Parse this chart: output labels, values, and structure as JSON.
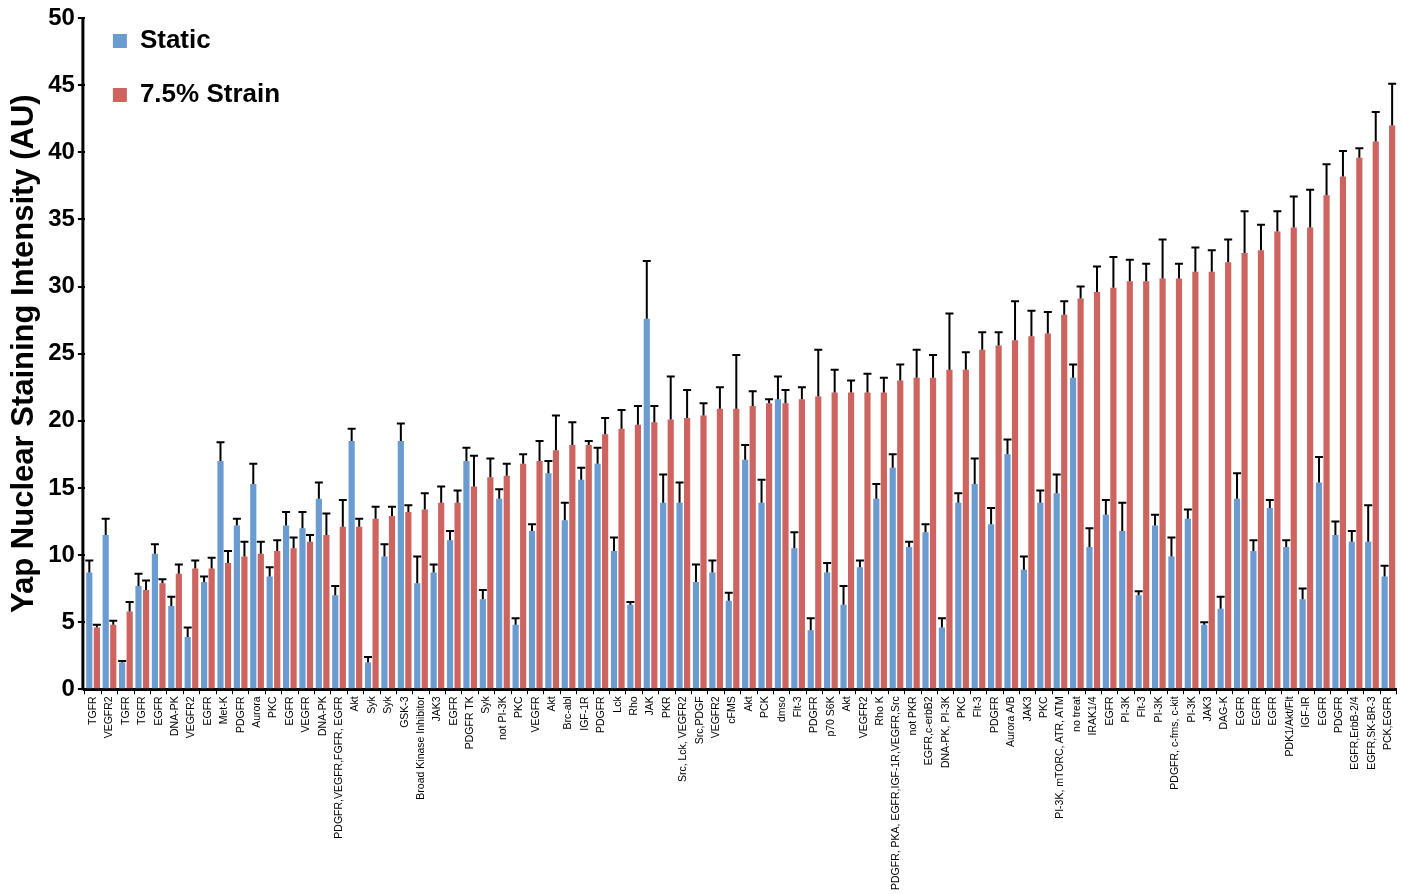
{
  "chart_data": {
    "type": "bar",
    "ylabel": "Yap Nuclear Staining Intensity (AU)",
    "ylim": [
      0,
      50
    ],
    "yticks": [
      0,
      5,
      10,
      15,
      20,
      25,
      30,
      35,
      40,
      45,
      50
    ],
    "legend": "top left",
    "categories": [
      "TGFR",
      "VEGFR2",
      "TGFR",
      "TGFR",
      "EGFR",
      "DNA-PK",
      "VEGFR2",
      "EGFR",
      "Met-K",
      "PDGFR",
      "Aurora",
      "PKC",
      "EGFR",
      "VEGFR",
      "DNA-PK",
      "PDGFR,VEGFR,FGFR, EGFR",
      "Akt",
      "Syk",
      "Syk",
      "GSK-3",
      "Broad Kinase Inhibitor",
      "JAK3",
      "EGFR",
      "PDGFR TK",
      "Syk",
      "not PI-3K",
      "PKC",
      "VEGFR",
      "Akt",
      "Brc-abl",
      "IGF-1R",
      "PDGFR",
      "Lck",
      "Rho",
      "JAK",
      "PKR",
      "Src, Lck, VEGFR2",
      "Src,PDGF",
      "VEGFR2",
      "cFMS",
      "Akt",
      "PCK",
      "dmso",
      "Flt-3",
      "PDGFR",
      "p70 S6K",
      "Akt",
      "VEGFR2",
      "Rho K",
      "PDGFR, PKA, EGFR,IGF-1R,VEGFR,Src",
      "not PKR",
      "EGFR,c-erbB2",
      "DNA-PK, PI-3K",
      "PKC",
      "Flt-3",
      "PDGFR",
      "Aurora A/B",
      "JAK3",
      "PKC",
      "PI-3K, mTORC, ATR, ATM",
      "no treat",
      "IRAK1/4",
      "EGFR",
      "PI-3K",
      "Flt-3",
      "PI-3K",
      "PDGFR, c-fms, c-kit",
      "PI-3K",
      "JAK3",
      "DAG-K",
      "EGFR",
      "EGFR",
      "EGFR",
      "PDK1/Akt/Flt",
      "IGF-IR",
      "EGFR",
      "PDGFR",
      "EGFR,ErbB-2/4",
      "EGFR,SK-BR-3",
      "PCK,EGFR"
    ],
    "series": [
      {
        "name": "Static",
        "color": "#6a9bd1",
        "values": [
          8.7,
          11.5,
          2.0,
          7.7,
          10.1,
          6.2,
          3.9,
          8.0,
          17.0,
          12.2,
          15.3,
          8.4,
          12.2,
          12.0,
          14.2,
          7.0,
          18.5,
          2.0,
          9.9,
          18.5,
          7.9,
          8.7,
          11.1,
          17.0,
          6.7,
          14.2,
          4.8,
          11.8,
          16.1,
          12.6,
          15.6,
          16.8,
          10.3,
          6.3,
          27.6,
          13.9,
          13.9,
          8.0,
          8.7,
          6.6,
          17.1,
          13.9,
          21.6,
          10.5,
          4.4,
          8.7,
          6.3,
          9.1,
          14.2,
          16.5,
          10.6,
          11.7,
          4.6,
          13.9,
          15.3,
          12.3,
          17.5,
          8.9,
          13.9,
          14.6,
          23.2,
          10.6,
          13.0,
          11.8,
          7.0,
          12.2,
          9.9,
          12.7,
          4.8,
          6.0,
          14.2,
          10.3,
          13.5,
          10.6,
          6.7,
          15.4,
          11.5,
          11.0,
          11.0,
          8.4
        ],
        "errors": [
          [
            8.7,
            9.6
          ],
          [
            11.5,
            12.7
          ],
          [
            2.0,
            2.1
          ],
          [
            7.7,
            8.6
          ],
          [
            10.1,
            10.8
          ],
          [
            6.2,
            6.9
          ],
          [
            3.9,
            4.6
          ],
          [
            8.0,
            8.4
          ],
          [
            17.0,
            18.4
          ],
          [
            12.2,
            12.7
          ],
          [
            15.3,
            16.8
          ],
          [
            8.4,
            9.1
          ],
          [
            12.2,
            13.2
          ],
          [
            12.0,
            13.2
          ],
          [
            14.2,
            15.4
          ],
          [
            7.0,
            7.7
          ],
          [
            18.5,
            19.4
          ],
          [
            2.0,
            2.4
          ],
          [
            9.9,
            10.8
          ],
          [
            18.5,
            19.8
          ],
          [
            7.9,
            9.9
          ],
          [
            8.7,
            9.3
          ],
          [
            11.1,
            11.8
          ],
          [
            17.0,
            18.0
          ],
          [
            6.7,
            7.4
          ],
          [
            14.2,
            14.9
          ],
          [
            4.8,
            5.3
          ],
          [
            11.8,
            12.3
          ],
          [
            16.1,
            17.0
          ],
          [
            12.6,
            13.9
          ],
          [
            15.6,
            16.5
          ],
          [
            16.8,
            18.0
          ],
          [
            10.3,
            11.3
          ],
          [
            6.3,
            6.5
          ],
          [
            27.6,
            31.9
          ],
          [
            13.9,
            16.0
          ],
          [
            13.9,
            15.4
          ],
          [
            8.0,
            9.3
          ],
          [
            8.7,
            9.6
          ],
          [
            6.6,
            7.2
          ],
          [
            17.1,
            18.2
          ],
          [
            13.9,
            15.6
          ],
          [
            21.6,
            23.3
          ],
          [
            10.5,
            11.7
          ],
          [
            4.4,
            5.3
          ],
          [
            8.7,
            9.4
          ],
          [
            6.3,
            7.7
          ],
          [
            9.1,
            9.6
          ],
          [
            14.2,
            15.3
          ],
          [
            16.5,
            17.5
          ],
          [
            10.6,
            11.0
          ],
          [
            11.7,
            12.3
          ],
          [
            4.6,
            5.3
          ],
          [
            13.9,
            14.6
          ],
          [
            15.3,
            17.2
          ],
          [
            12.3,
            13.5
          ],
          [
            17.5,
            18.6
          ],
          [
            8.9,
            9.9
          ],
          [
            13.9,
            14.8
          ],
          [
            14.6,
            16.0
          ],
          [
            23.2,
            24.2
          ],
          [
            10.6,
            12.0
          ],
          [
            13.0,
            14.1
          ],
          [
            11.8,
            13.9
          ],
          [
            7.0,
            7.3
          ],
          [
            12.2,
            13.0
          ],
          [
            9.9,
            11.3
          ],
          [
            12.7,
            13.4
          ],
          [
            4.8,
            5.0
          ],
          [
            6.0,
            6.9
          ],
          [
            14.2,
            16.1
          ],
          [
            10.3,
            11.1
          ],
          [
            13.5,
            14.1
          ],
          [
            10.6,
            11.1
          ],
          [
            6.7,
            7.5
          ],
          [
            15.4,
            17.3
          ],
          [
            11.5,
            12.5
          ],
          [
            11.0,
            11.8
          ],
          [
            11.0,
            13.7
          ],
          [
            8.4,
            9.2
          ]
        ]
      },
      {
        "name": "7.5% Strain",
        "color": "#cd6460",
        "values": [
          4.6,
          4.8,
          5.8,
          7.4,
          7.9,
          8.6,
          9.0,
          9.0,
          9.4,
          9.9,
          10.1,
          10.3,
          10.5,
          11.0,
          11.5,
          12.1,
          12.1,
          12.7,
          12.9,
          13.2,
          13.4,
          13.9,
          13.9,
          15.1,
          15.8,
          15.9,
          16.8,
          17.0,
          17.8,
          18.2,
          18.2,
          19.0,
          19.4,
          19.7,
          19.9,
          20.1,
          20.2,
          20.4,
          20.9,
          20.9,
          21.1,
          21.3,
          21.3,
          21.6,
          21.8,
          22.1,
          22.1,
          22.1,
          22.1,
          23.0,
          23.2,
          23.2,
          23.8,
          23.8,
          25.3,
          25.6,
          26.0,
          26.3,
          26.5,
          27.9,
          29.1,
          29.6,
          29.9,
          30.4,
          30.4,
          30.6,
          30.6,
          31.1,
          31.1,
          31.8,
          32.5,
          32.7,
          34.1,
          34.4,
          34.4,
          36.8,
          38.2,
          39.6,
          40.8,
          42.0
        ],
        "errors": [
          [
            4.6,
            4.8
          ],
          [
            4.8,
            5.1
          ],
          [
            5.8,
            6.5
          ],
          [
            7.4,
            8.1
          ],
          [
            7.9,
            8.2
          ],
          [
            8.6,
            9.3
          ],
          [
            9.0,
            9.6
          ],
          [
            9.0,
            9.8
          ],
          [
            9.4,
            10.3
          ],
          [
            9.9,
            11.0
          ],
          [
            10.1,
            11.0
          ],
          [
            10.3,
            11.1
          ],
          [
            10.5,
            11.3
          ],
          [
            11.0,
            11.5
          ],
          [
            11.5,
            13.1
          ],
          [
            12.1,
            14.1
          ],
          [
            12.1,
            12.7
          ],
          [
            12.7,
            13.6
          ],
          [
            12.9,
            13.6
          ],
          [
            13.2,
            13.7
          ],
          [
            13.4,
            14.6
          ],
          [
            13.9,
            15.1
          ],
          [
            13.9,
            14.8
          ],
          [
            15.1,
            17.4
          ],
          [
            15.8,
            17.2
          ],
          [
            15.9,
            16.8
          ],
          [
            16.8,
            17.5
          ],
          [
            17.0,
            18.5
          ],
          [
            17.8,
            20.4
          ],
          [
            18.2,
            19.9
          ],
          [
            18.2,
            18.5
          ],
          [
            19.0,
            20.2
          ],
          [
            19.4,
            20.8
          ],
          [
            19.7,
            21.1
          ],
          [
            19.9,
            21.1
          ],
          [
            20.1,
            23.3
          ],
          [
            20.2,
            22.3
          ],
          [
            20.4,
            21.3
          ],
          [
            20.9,
            22.5
          ],
          [
            20.9,
            24.9
          ],
          [
            21.1,
            22.2
          ],
          [
            21.3,
            21.6
          ],
          [
            21.3,
            22.3
          ],
          [
            21.6,
            22.5
          ],
          [
            21.8,
            25.3
          ],
          [
            22.1,
            23.8
          ],
          [
            22.1,
            23.0
          ],
          [
            22.1,
            23.5
          ],
          [
            22.1,
            23.2
          ],
          [
            23.0,
            24.2
          ],
          [
            23.2,
            25.3
          ],
          [
            23.2,
            24.9
          ],
          [
            23.8,
            28.0
          ],
          [
            23.8,
            25.1
          ],
          [
            25.3,
            26.6
          ],
          [
            25.6,
            26.6
          ],
          [
            26.0,
            28.9
          ],
          [
            26.3,
            28.2
          ],
          [
            26.5,
            28.1
          ],
          [
            27.9,
            28.9
          ],
          [
            29.1,
            30.0
          ],
          [
            29.6,
            31.5
          ],
          [
            29.9,
            32.2
          ],
          [
            30.4,
            32.0
          ],
          [
            30.4,
            31.7
          ],
          [
            30.6,
            33.5
          ],
          [
            30.6,
            31.7
          ],
          [
            31.1,
            32.9
          ],
          [
            31.1,
            32.7
          ],
          [
            31.8,
            33.5
          ],
          [
            32.5,
            35.6
          ],
          [
            32.7,
            34.6
          ],
          [
            34.1,
            35.6
          ],
          [
            34.4,
            36.7
          ],
          [
            34.4,
            37.2
          ],
          [
            36.8,
            39.1
          ],
          [
            38.2,
            40.1
          ],
          [
            39.6,
            40.3
          ],
          [
            40.8,
            43.0
          ],
          [
            42.0,
            45.1
          ]
        ]
      }
    ]
  }
}
